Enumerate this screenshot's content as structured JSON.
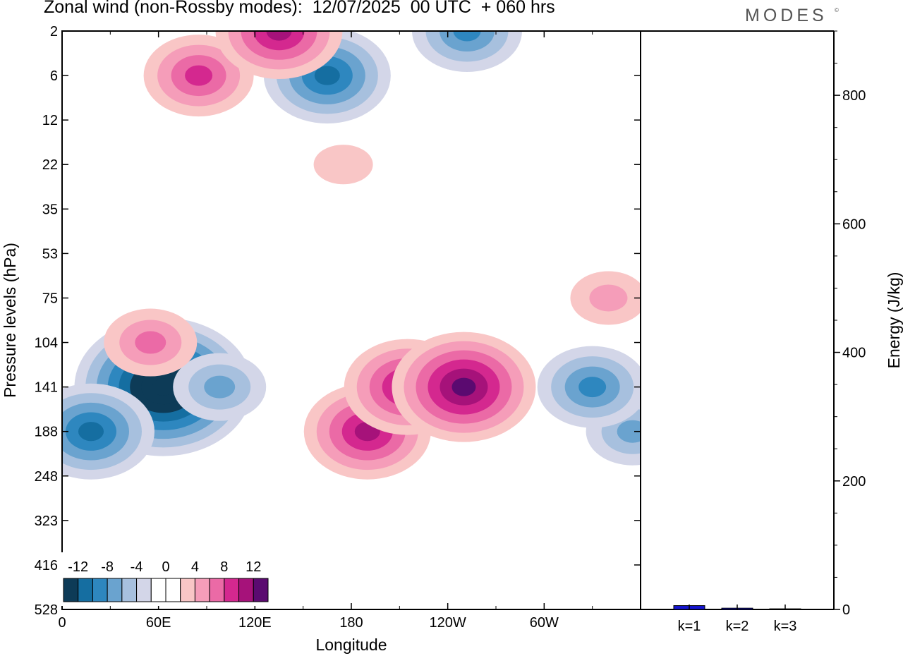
{
  "header": {
    "title": "Zonal wind (non-Rossby modes):  12/07/2025  00 UTC  + 060 hrs",
    "brand": "MODES",
    "brand_mark": "©"
  },
  "chart_data": [
    {
      "type": "heatmap",
      "xlabel": "Longitude",
      "ylabel": "Pressure levels (hPa)",
      "x_ticks": [
        "0",
        "60E",
        "120E",
        "180",
        "120W",
        "60W"
      ],
      "x_tick_values": [
        0,
        60,
        120,
        180,
        240,
        300
      ],
      "xlim": [
        0,
        360
      ],
      "y_ticks": [
        "2",
        "6",
        "12",
        "22",
        "35",
        "53",
        "75",
        "104",
        "141",
        "188",
        "248",
        "323",
        "416",
        "528"
      ],
      "colorbar": {
        "tick_labels": [
          "-12",
          "-8",
          "-4",
          "0",
          "4",
          "8",
          "12"
        ],
        "colors": [
          "#0d3b57",
          "#156ea1",
          "#2e87bf",
          "#6aa3cf",
          "#a7c0de",
          "#d3d6e8",
          "#ffffff",
          "#ffffff",
          "#f9c6c6",
          "#f59db9",
          "#eb6aa6",
          "#d4288f",
          "#a6127a",
          "#5b0a70"
        ]
      },
      "features": [
        {
          "lon": 63,
          "level": "141",
          "value": -16
        },
        {
          "lon": 18,
          "level": "188",
          "value": -10
        },
        {
          "lon": 98,
          "level": "141",
          "value": -6
        },
        {
          "lon": 355,
          "level": "188",
          "value": -7
        },
        {
          "lon": 330,
          "level": "141",
          "value": -8
        },
        {
          "lon": 165,
          "level": "6",
          "value": -10
        },
        {
          "lon": 252,
          "level": "2",
          "value": -9
        },
        {
          "lon": 190,
          "level": "188",
          "value": 10
        },
        {
          "lon": 215,
          "level": "141",
          "value": 10
        },
        {
          "lon": 250,
          "level": "141",
          "value": 12
        },
        {
          "lon": 55,
          "level": "104",
          "value": 7
        },
        {
          "lon": 85,
          "level": "6",
          "value": 9
        },
        {
          "lon": 135,
          "level": "2",
          "value": 10
        },
        {
          "lon": 340,
          "level": "75",
          "value": 5
        },
        {
          "lon": 175,
          "level": "22",
          "value": 3
        }
      ]
    },
    {
      "type": "bar",
      "ylabel": "Energy (J/kg)",
      "categories": [
        "k=1",
        "k=2",
        "k=3"
      ],
      "values": [
        6,
        2,
        1
      ],
      "ylim": [
        0,
        900
      ],
      "y_ticks": [
        0,
        200,
        400,
        600,
        800
      ],
      "bar_color": "#1515d0"
    }
  ]
}
